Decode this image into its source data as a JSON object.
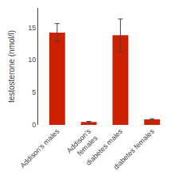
{
  "chart_data": {
    "type": "bar",
    "categories": [
      "Addison's males",
      "Addison's\nfemales",
      "diabetes males",
      "diabetes females"
    ],
    "values": [
      14.2,
      0.45,
      13.8,
      0.85
    ],
    "errors": [
      1.4,
      0.1,
      2.5,
      0.1
    ],
    "color": "#cc2000",
    "ylabel": "testosterone (nmol/l)",
    "ylim": [
      0,
      18
    ],
    "yticks": [
      0,
      5,
      10,
      15
    ],
    "grid": false
  }
}
